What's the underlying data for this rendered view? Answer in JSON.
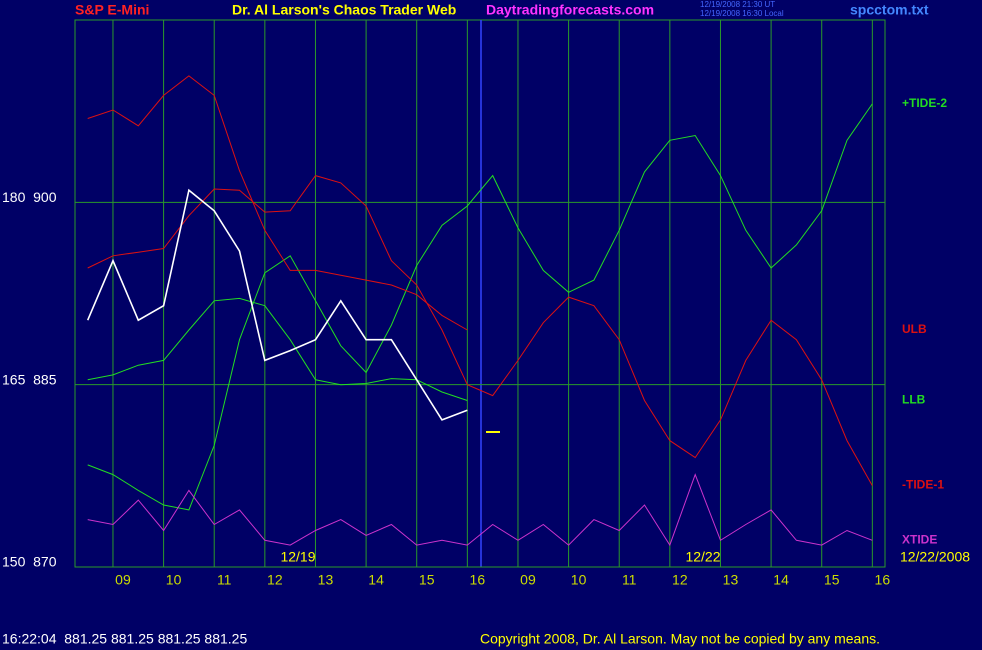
{
  "chart_data": {
    "type": "line",
    "symbol": "S&P E-Mini",
    "title": "Dr. Al Larson's Chaos Trader Web",
    "site": "Daytradingforecasts.com",
    "timestamps": [
      "12/19/2008 21:30 UT",
      "12/19/2008 16:30 Local"
    ],
    "file": "spcctom.txt",
    "status": "16:22:04  881.25 881.25 881.25 881.25",
    "copyright": "Copyright 2008, Dr. Al Larson. May not be copied by any means.",
    "annotations": [
      "12/19",
      "12/22",
      "12/22/2008"
    ],
    "categories": [
      null,
      "09",
      null,
      "10",
      null,
      "11",
      null,
      "12",
      null,
      "13",
      null,
      "14",
      null,
      "15",
      null,
      "16",
      null,
      "09",
      null,
      "10",
      null,
      "11",
      null,
      "12",
      null,
      "13",
      null,
      "14",
      null,
      "15",
      null,
      "16"
    ],
    "ylim": [
      870,
      915
    ],
    "yticks": [
      {
        "value": 870,
        "label": "150  870"
      },
      {
        "value": 885,
        "label": "165  885"
      },
      {
        "value": 900,
        "label": "180  900"
      }
    ],
    "grid": true,
    "series": [
      {
        "name": "+TIDE-2",
        "color": "#22dd22",
        "values": [
          878.4,
          877.6,
          876.3,
          875.1,
          874.7,
          880.0,
          888.7,
          894.2,
          895.6,
          891.9,
          888.2,
          886.0,
          889.9,
          894.8,
          898.1,
          899.7,
          902.2,
          897.9,
          894.4,
          892.6,
          893.6,
          897.7,
          902.5,
          905.1,
          905.5,
          902.2,
          897.7,
          894.6,
          896.5,
          899.3,
          905.1,
          908.1
        ]
      },
      {
        "name": "ULB",
        "color": "#dd1111",
        "values": [
          906.9,
          907.6,
          906.3,
          908.8,
          910.4,
          908.8,
          902.6,
          897.7,
          894.4,
          894.4,
          894.0,
          893.6,
          893.2,
          892.4,
          890.7,
          889.5,
          null,
          null,
          null,
          null,
          null,
          null,
          null,
          null,
          null,
          null,
          null,
          null,
          null,
          null,
          null,
          null
        ]
      },
      {
        "name": "LLB",
        "color": "#22dd22",
        "values": [
          885.4,
          885.8,
          886.6,
          887.0,
          889.5,
          891.9,
          892.1,
          891.5,
          888.7,
          885.4,
          885.0,
          885.1,
          885.5,
          885.4,
          884.4,
          883.7,
          null,
          null,
          null,
          null,
          null,
          null,
          null,
          null,
          null,
          null,
          null,
          null,
          null,
          null,
          null,
          null
        ]
      },
      {
        "name": "-TIDE-1",
        "color": "#dd1111",
        "values": [
          894.6,
          895.6,
          895.9,
          896.2,
          898.9,
          901.1,
          901.0,
          899.2,
          899.3,
          902.2,
          901.6,
          899.7,
          895.2,
          893.2,
          889.5,
          885.0,
          884.1,
          887.0,
          890.1,
          892.2,
          891.5,
          888.7,
          883.7,
          880.4,
          879.0,
          882.1,
          887.0,
          890.3,
          888.7,
          885.4,
          880.4,
          876.7
        ]
      },
      {
        "name": "XTIDE",
        "color": "#cc33cc",
        "values": [
          873.9,
          873.5,
          875.5,
          873.0,
          876.3,
          873.5,
          874.7,
          872.2,
          871.8,
          873.0,
          873.9,
          872.6,
          873.5,
          871.8,
          872.2,
          871.8,
          873.5,
          872.2,
          873.5,
          871.8,
          873.9,
          873.0,
          875.1,
          871.8,
          877.6,
          872.2,
          873.5,
          874.7,
          872.2,
          871.8,
          873.0,
          872.2
        ]
      },
      {
        "color": "#ffffff",
        "values": [
          890.3,
          895.2,
          890.3,
          891.5,
          901.0,
          899.3,
          896.0,
          887.0,
          887.8,
          888.7,
          891.9,
          888.7,
          888.7,
          885.4,
          882.1,
          882.9,
          null,
          null,
          null,
          null,
          null,
          null,
          null,
          null,
          null,
          null,
          null,
          null,
          null,
          null,
          null,
          null
        ]
      }
    ]
  }
}
